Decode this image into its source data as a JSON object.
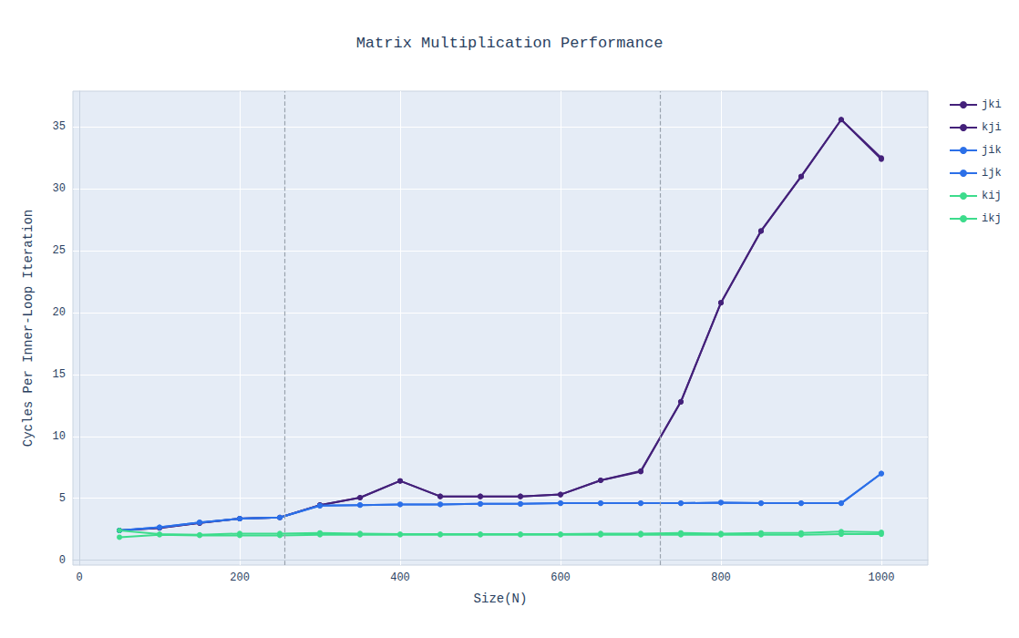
{
  "chart_data": {
    "type": "line",
    "title": "Matrix Multiplication Performance",
    "x_label": "Size(N)",
    "y_label": "Cycles Per Inner-Loop Iteration",
    "x": [
      50,
      100,
      150,
      200,
      250,
      300,
      350,
      400,
      450,
      500,
      550,
      600,
      650,
      700,
      750,
      800,
      850,
      900,
      950,
      1000
    ],
    "series": [
      {
        "name": "jki",
        "color": "#44217a",
        "values": [
          2.4,
          2.6,
          3.0,
          3.35,
          3.45,
          4.45,
          5.05,
          6.4,
          5.15,
          5.15,
          5.15,
          5.3,
          6.45,
          7.15,
          12.8,
          20.8,
          26.6,
          31.0,
          35.6,
          32.4
        ]
      },
      {
        "name": "kji",
        "color": "#44217a",
        "values": [
          2.4,
          2.6,
          3.0,
          3.35,
          3.45,
          4.45,
          5.05,
          6.4,
          5.15,
          5.15,
          5.15,
          5.3,
          6.45,
          7.2,
          12.8,
          20.8,
          26.6,
          31.0,
          35.6,
          32.5
        ]
      },
      {
        "name": "jik",
        "color": "#2c70e8",
        "values": [
          2.4,
          2.65,
          3.05,
          3.35,
          3.45,
          4.4,
          4.45,
          4.5,
          4.5,
          4.55,
          4.55,
          4.6,
          4.6,
          4.6,
          4.6,
          4.65,
          4.6,
          4.6,
          4.6,
          7.0
        ]
      },
      {
        "name": "ijk",
        "color": "#2c70e8",
        "values": [
          2.4,
          2.65,
          3.05,
          3.35,
          3.45,
          4.4,
          4.45,
          4.5,
          4.5,
          4.55,
          4.55,
          4.6,
          4.6,
          4.6,
          4.6,
          4.65,
          4.6,
          4.6,
          4.6,
          7.0
        ]
      },
      {
        "name": "kij",
        "color": "#3ddc8c",
        "values": [
          2.4,
          2.1,
          2.05,
          2.15,
          2.15,
          2.2,
          2.15,
          2.1,
          2.1,
          2.1,
          2.1,
          2.1,
          2.15,
          2.15,
          2.2,
          2.15,
          2.2,
          2.2,
          2.3,
          2.25
        ]
      },
      {
        "name": "ikj",
        "color": "#3ddc8c",
        "values": [
          1.85,
          2.05,
          2.0,
          2.0,
          2.0,
          2.05,
          2.05,
          2.05,
          2.05,
          2.05,
          2.05,
          2.05,
          2.05,
          2.05,
          2.05,
          2.05,
          2.05,
          2.05,
          2.1,
          2.1
        ]
      }
    ],
    "vertical_lines": [
      256,
      724
    ],
    "xlim": [
      -8,
      1058
    ],
    "xticks": [
      0,
      200,
      400,
      600,
      800,
      1000
    ],
    "ylim": [
      -0.4,
      37.9
    ],
    "yticks": [
      0,
      5,
      10,
      15,
      20,
      25,
      30,
      35
    ],
    "grid": true,
    "legend": "top-right",
    "marker": "circle"
  }
}
